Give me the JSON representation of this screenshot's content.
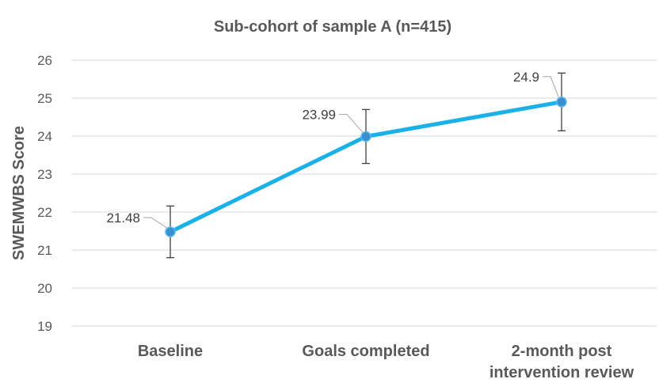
{
  "chart_data": {
    "type": "line",
    "title": "Sub-cohort of sample A (n=415)",
    "xlabel": "",
    "ylabel": "SWEMWBS Score",
    "categories": [
      [
        "Baseline"
      ],
      [
        "Goals completed"
      ],
      [
        "2-month post",
        "intervention review"
      ]
    ],
    "series": [
      {
        "values": [
          21.48,
          23.99,
          24.9
        ],
        "error_low": [
          20.8,
          23.28,
          24.14
        ],
        "error_high": [
          22.16,
          24.7,
          25.66
        ],
        "data_labels": [
          "21.48",
          "23.99",
          "24.9"
        ],
        "color": "#1ab0e8"
      }
    ],
    "ylim": [
      19,
      26
    ],
    "yticks": [
      19,
      20,
      21,
      22,
      23,
      24,
      25,
      26
    ],
    "grid": true,
    "legend": "none"
  }
}
